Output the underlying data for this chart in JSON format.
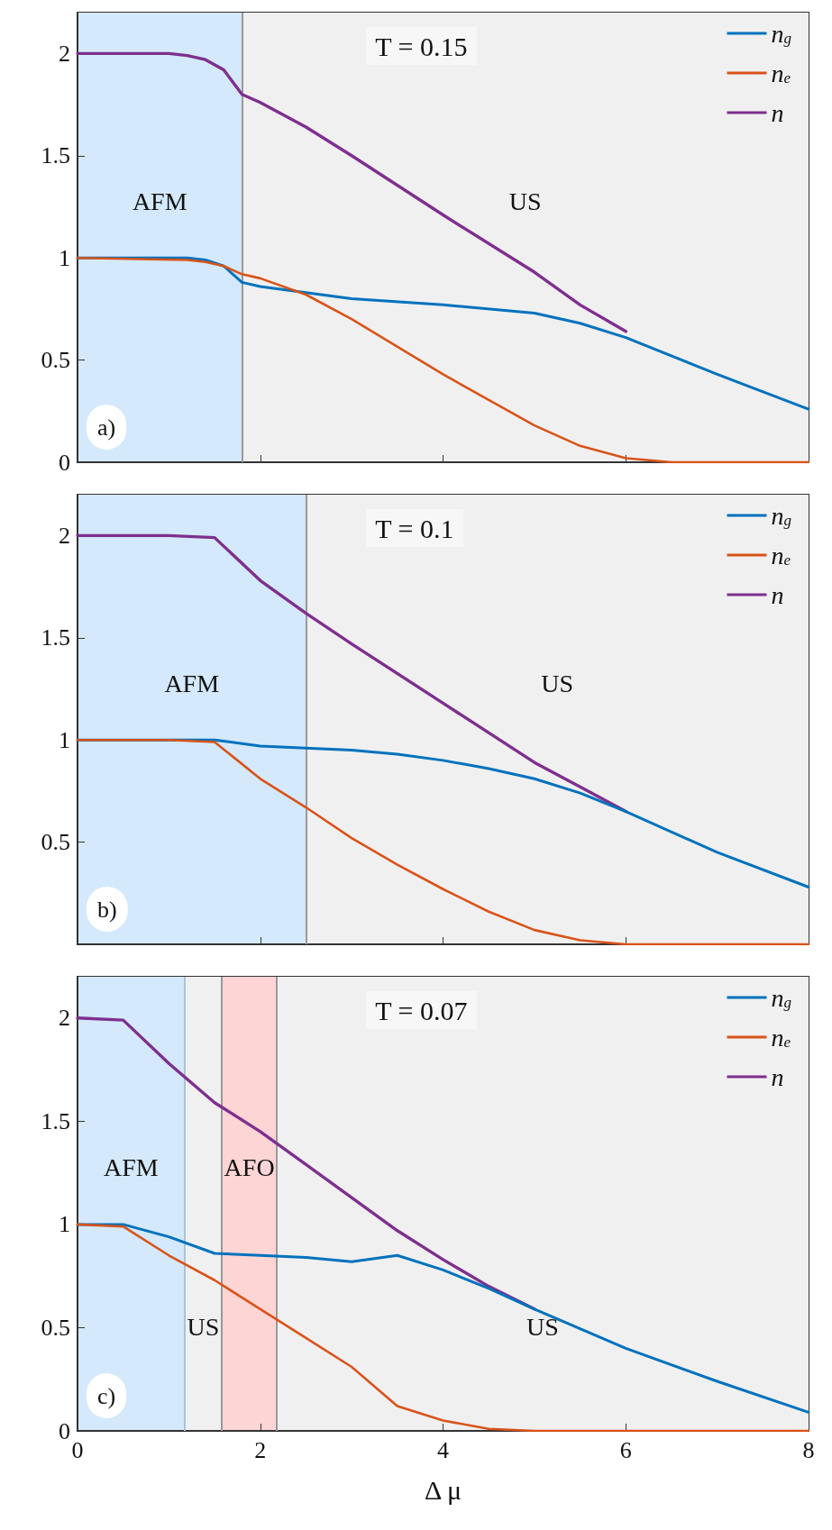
{
  "chart_data": [
    {
      "type": "line",
      "title": "T = 0.15",
      "annotations": [
        "a)"
      ],
      "xlim": [
        0,
        8
      ],
      "xticks": [
        0,
        2,
        4,
        6,
        8
      ],
      "ylim": [
        0,
        2.2
      ],
      "yticks": [
        0,
        0.5,
        1,
        1.5,
        2
      ],
      "tick_labels": "y",
      "grid": false,
      "legend": "top right",
      "marker": "none",
      "line_style": "solid",
      "bands": [
        {
          "axis": "x",
          "from": 0,
          "to": 1.8,
          "label": "AFM",
          "color": "#d4e9fb"
        },
        {
          "axis": "x",
          "from": 1.8,
          "to": 8,
          "label": "US",
          "color": "#f0f0f0"
        }
      ],
      "ref_lines": [
        {
          "axis": "x",
          "value": 1.8,
          "color": "#999999"
        }
      ],
      "series": [
        {
          "name": "n$_{g}$",
          "color": "#0072bd",
          "x": [
            0,
            1.2,
            1.4,
            1.6,
            1.8,
            2,
            2.5,
            3,
            4,
            5,
            5.5,
            6,
            7,
            8
          ],
          "values": [
            1,
            1,
            0.99,
            0.96,
            0.88,
            0.86,
            0.83,
            0.8,
            0.77,
            0.73,
            0.68,
            0.61,
            0.43,
            0.26
          ]
        },
        {
          "name": "n$_{e}$",
          "color": "#d95319",
          "x": [
            0,
            1.2,
            1.4,
            1.6,
            1.8,
            2,
            2.5,
            3,
            4,
            5,
            5.5,
            6,
            6.5,
            8
          ],
          "values": [
            1,
            0.99,
            0.98,
            0.96,
            0.92,
            0.9,
            0.82,
            0.7,
            0.43,
            0.18,
            0.08,
            0.02,
            0,
            0
          ]
        },
        {
          "name": "n",
          "color": "#7e2f8e",
          "x": [
            0,
            1,
            1.2,
            1.4,
            1.6,
            1.8,
            2,
            2.5,
            3,
            4,
            5,
            5.5,
            6
          ],
          "values": [
            2,
            2,
            1.99,
            1.97,
            1.92,
            1.8,
            1.76,
            1.64,
            1.5,
            1.21,
            0.93,
            0.77,
            0.64
          ]
        }
      ]
    },
    {
      "type": "line",
      "title": "T = 0.1",
      "annotations": [
        "b)"
      ],
      "xlim": [
        0,
        8
      ],
      "xticks": [
        0,
        2,
        4,
        6,
        8
      ],
      "ylim": [
        0,
        2.2
      ],
      "yticks": [
        0.5,
        1,
        1.5,
        2
      ],
      "tick_labels": "y",
      "grid": false,
      "legend": "top right",
      "marker": "none",
      "line_style": "solid",
      "bands": [
        {
          "axis": "x",
          "from": 0,
          "to": 2.5,
          "label": "AFM",
          "color": "#d4e9fb"
        },
        {
          "axis": "x",
          "from": 2.5,
          "to": 8,
          "label": "US",
          "color": "#f0f0f0"
        }
      ],
      "ref_lines": [
        {
          "axis": "x",
          "value": 2.5,
          "color": "#999999"
        }
      ],
      "series": [
        {
          "name": "n$_{g}$",
          "color": "#0072bd",
          "x": [
            0,
            1.5,
            2,
            3,
            3.5,
            4,
            4.5,
            5,
            5.5,
            6,
            7,
            8
          ],
          "values": [
            1,
            1,
            0.97,
            0.95,
            0.93,
            0.9,
            0.86,
            0.81,
            0.74,
            0.65,
            0.45,
            0.28
          ]
        },
        {
          "name": "n$_{e}$",
          "color": "#d95319",
          "x": [
            0,
            1,
            1.5,
            2,
            2.5,
            3,
            3.5,
            4,
            4.5,
            5,
            5.5,
            6,
            8
          ],
          "values": [
            1,
            1,
            0.99,
            0.81,
            0.67,
            0.52,
            0.39,
            0.27,
            0.16,
            0.07,
            0.02,
            0,
            0
          ]
        },
        {
          "name": "n",
          "color": "#7e2f8e",
          "x": [
            0,
            1,
            1.5,
            2,
            2.5,
            3,
            4,
            5,
            5.5,
            6
          ],
          "values": [
            2,
            2,
            1.99,
            1.78,
            1.62,
            1.47,
            1.18,
            0.89,
            0.77,
            0.65
          ]
        }
      ]
    },
    {
      "type": "line",
      "title": "T = 0.07",
      "annotations": [
        "c)"
      ],
      "xlabel": "Δ μ",
      "xlim": [
        0,
        8
      ],
      "xticks": [
        0,
        2,
        4,
        6,
        8
      ],
      "ylim": [
        0,
        2.2
      ],
      "yticks": [
        0,
        0.5,
        1,
        1.5,
        2
      ],
      "grid": false,
      "legend": "top right",
      "marker": "none",
      "line_style": "solid",
      "bands": [
        {
          "axis": "x",
          "from": 0,
          "to": 1.17,
          "label": "AFM",
          "color": "#d4e9fb"
        },
        {
          "axis": "x",
          "from": 1.17,
          "to": 1.58,
          "label": "US",
          "color": "#f0f0f0"
        },
        {
          "axis": "x",
          "from": 1.58,
          "to": 2.18,
          "label": "AFO",
          "color": "#fdd5d5"
        },
        {
          "axis": "x",
          "from": 2.18,
          "to": 8,
          "label": "US",
          "color": "#f0f0f0"
        }
      ],
      "ref_lines": [
        {
          "axis": "x",
          "value": 1.17,
          "color": "#a8c4dc"
        },
        {
          "axis": "x",
          "value": 1.58,
          "color": "#999999"
        },
        {
          "axis": "x",
          "value": 2.18,
          "color": "#999999"
        }
      ],
      "series": [
        {
          "name": "n$_{g}$",
          "color": "#0072bd",
          "x": [
            0,
            0.5,
            1,
            1.5,
            2,
            2.5,
            3,
            3.5,
            4,
            4.5,
            5,
            6,
            7,
            8
          ],
          "values": [
            1,
            1,
            0.94,
            0.86,
            0.85,
            0.84,
            0.82,
            0.85,
            0.78,
            0.69,
            0.59,
            0.4,
            0.24,
            0.09
          ]
        },
        {
          "name": "n$_{e}$",
          "color": "#d95319",
          "x": [
            0,
            0.5,
            1,
            1.5,
            2,
            2.5,
            3,
            3.5,
            4,
            4.5,
            5,
            6,
            8
          ],
          "values": [
            1,
            0.99,
            0.85,
            0.73,
            0.59,
            0.45,
            0.31,
            0.12,
            0.05,
            0.01,
            0,
            0,
            0
          ]
        },
        {
          "name": "n",
          "color": "#7e2f8e",
          "x": [
            0,
            0.5,
            1,
            1.5,
            2,
            2.5,
            3,
            3.5,
            4,
            4.5,
            5
          ],
          "values": [
            2,
            1.99,
            1.78,
            1.59,
            1.45,
            1.29,
            1.13,
            0.97,
            0.83,
            0.7,
            0.59
          ]
        }
      ]
    }
  ]
}
